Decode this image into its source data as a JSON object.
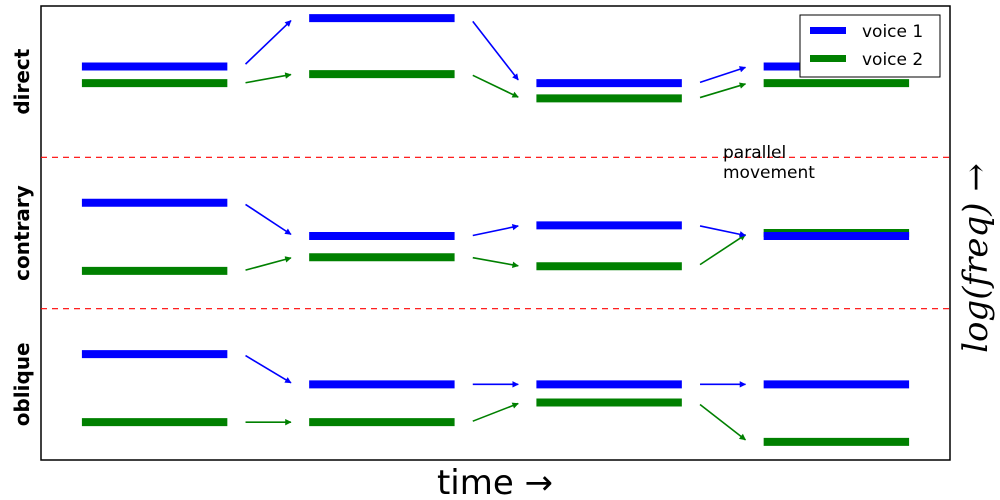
{
  "chart_data": {
    "type": "line",
    "xlabel": "time →",
    "ylabel": "log(freq) →",
    "xlim": [
      0,
      4
    ],
    "ylim": [
      0,
      3
    ],
    "grid": false,
    "legend": {
      "placement": "top-right",
      "entries": [
        "voice 1",
        "voice 2"
      ]
    },
    "colors": {
      "voice 1": "#0000ff",
      "voice 2": "#008000",
      "divider": "#ff0000"
    },
    "rows": [
      {
        "label": "direct",
        "range": [
          2,
          3
        ]
      },
      {
        "label": "contrary",
        "range": [
          1,
          2
        ]
      },
      {
        "label": "oblique",
        "range": [
          0,
          1
        ]
      }
    ],
    "dividers": [
      1,
      2
    ],
    "segments": [
      {
        "x": [
          0.18,
          0.82
        ]
      },
      {
        "x": [
          1.18,
          1.82
        ]
      },
      {
        "x": [
          2.18,
          2.82
        ]
      },
      {
        "x": [
          3.18,
          3.82
        ]
      }
    ],
    "series": [
      {
        "name": "voice 1",
        "rows": [
          {
            "row": "direct",
            "values": [
              2.6,
              2.92,
              2.49,
              2.6
            ]
          },
          {
            "row": "contrary",
            "values": [
              1.7,
              1.48,
              1.55,
              1.48
            ]
          },
          {
            "row": "oblique",
            "values": [
              0.7,
              0.5,
              0.5,
              0.5
            ]
          }
        ]
      },
      {
        "name": "voice 2",
        "rows": [
          {
            "row": "direct",
            "values": [
              2.49,
              2.55,
              2.39,
              2.49
            ]
          },
          {
            "row": "contrary",
            "values": [
              1.25,
              1.34,
              1.28,
              1.5
            ]
          },
          {
            "row": "oblique",
            "values": [
              0.25,
              0.25,
              0.38,
              0.12
            ]
          }
        ]
      }
    ],
    "annotations": [
      {
        "text_lines": [
          "parallel",
          "movement"
        ],
        "x": 3.0,
        "y": 2.1
      }
    ]
  }
}
